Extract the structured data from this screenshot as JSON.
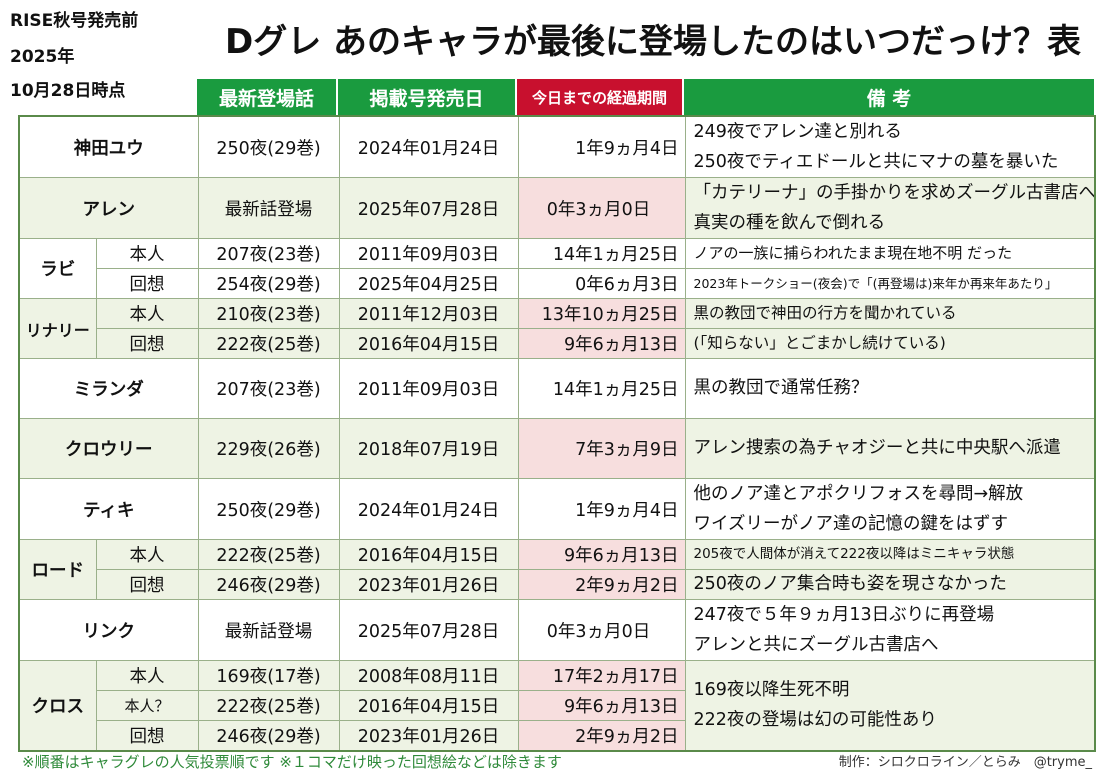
{
  "corner": {
    "line1": "RISE秋号発売前",
    "line2": "2025年",
    "line3": "10月28日時点"
  },
  "title": "Dグレ あのキャラが最後に登場したのはいつだっけ？表",
  "headers": {
    "episode": "最新登場話",
    "date": "掲載号発売日",
    "elapsed": "今日までの経過期間",
    "notes": "備 考"
  },
  "rows": {
    "kanda": {
      "name": "神田ユウ",
      "ep": "250夜(29巻)",
      "date": "2024年01月24日",
      "elapsed": "1年9ヵ月4日",
      "note1": "249夜でアレン達と別れる",
      "note2": "250夜でティエドールと共にマナの墓を暴いた"
    },
    "allen": {
      "name": "アレン",
      "ep": "最新話登場",
      "date": "2025年07月28日",
      "elapsed": "0年3ヵ月0日",
      "note1": "「カテリーナ」の手掛かりを求めズーグル古書店へ",
      "note2": "真実の種を飲んで倒れる"
    },
    "lavi1": {
      "name": "ラビ",
      "sub": "本人",
      "ep": "207夜(23巻)",
      "date": "2011年09月03日",
      "elapsed": "14年1ヵ月25日",
      "note": "ノアの一族に捕らわれたまま現在地不明 だった"
    },
    "lavi2": {
      "sub": "回想",
      "ep": "254夜(29巻)",
      "date": "2025年04月25日",
      "elapsed": "0年6ヵ月3日",
      "note": "2023年トークショー(夜会)で「(再登場は)来年か再来年あたり」"
    },
    "lenalee1": {
      "name": "リナリー",
      "sub": "本人",
      "ep": "210夜(23巻)",
      "date": "2011年12月03日",
      "elapsed": "13年10ヵ月25日",
      "note": "黒の教団で神田の行方を聞かれている"
    },
    "lenalee2": {
      "sub": "回想",
      "ep": "222夜(25巻)",
      "date": "2016年04月15日",
      "elapsed": "9年6ヵ月13日",
      "note": "(「知らない」とごまかし続けている)"
    },
    "miranda": {
      "name": "ミランダ",
      "ep": "207夜(23巻)",
      "date": "2011年09月03日",
      "elapsed": "14年1ヵ月25日",
      "note": "黒の教団で通常任務？"
    },
    "krory": {
      "name": "クロウリー",
      "ep": "229夜(26巻)",
      "date": "2018年07月19日",
      "elapsed": "7年3ヵ月9日",
      "note": "アレン捜索の為チャオジーと共に中央駅へ派遣"
    },
    "tyki": {
      "name": "ティキ",
      "ep": "250夜(29巻)",
      "date": "2024年01月24日",
      "elapsed": "1年9ヵ月4日",
      "note1": "他のノア達とアポクリフォスを尋問→解放",
      "note2": "ワイズリーがノア達の記憶の鍵をはずす"
    },
    "road1": {
      "name": "ロード",
      "sub": "本人",
      "ep": "222夜(25巻)",
      "date": "2016年04月15日",
      "elapsed": "9年6ヵ月13日",
      "note": "205夜で人間体が消えて222夜以降はミニキャラ状態"
    },
    "road2": {
      "sub": "回想",
      "ep": "246夜(29巻)",
      "date": "2023年01月26日",
      "elapsed": "2年9ヵ月2日",
      "note": "250夜のノア集合時も姿を現さなかった"
    },
    "link": {
      "name": "リンク",
      "ep": "最新話登場",
      "date": "2025年07月28日",
      "elapsed": "0年3ヵ月0日",
      "note1": "247夜で５年９ヵ月13日ぶりに再登場",
      "note2": "アレンと共にズーグル古書店へ"
    },
    "cross1": {
      "name": "クロス",
      "sub": "本人",
      "ep": "169夜(17巻)",
      "date": "2008年08月11日",
      "elapsed": "17年2ヵ月17日",
      "note1": "169夜以降生死不明",
      "note2": "222夜の登場は幻の可能性あり"
    },
    "cross2": {
      "sub": "本人？",
      "ep": "222夜(25巻)",
      "date": "2016年04月15日",
      "elapsed": "9年6ヵ月13日"
    },
    "cross3": {
      "sub": "回想",
      "ep": "246夜(29巻)",
      "date": "2023年01月26日",
      "elapsed": "2年9ヵ月2日"
    }
  },
  "footer": {
    "left": "※順番はキャラグレの人気投票順です ※１コマだけ映った回想絵などは除きます",
    "right": "制作：シロクロライン／とらみ　@tryme_"
  }
}
